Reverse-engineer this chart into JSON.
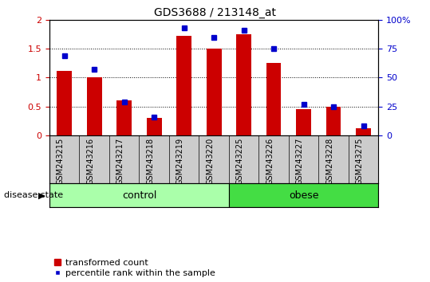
{
  "title": "GDS3688 / 213148_at",
  "categories": [
    "GSM243215",
    "GSM243216",
    "GSM243217",
    "GSM243218",
    "GSM243219",
    "GSM243220",
    "GSM243225",
    "GSM243226",
    "GSM243227",
    "GSM243228",
    "GSM243275"
  ],
  "transformed_count": [
    1.12,
    1.0,
    0.6,
    0.3,
    1.72,
    1.5,
    1.75,
    1.25,
    0.45,
    0.5,
    0.12
  ],
  "percentile_rank": [
    69,
    57,
    29,
    16,
    93,
    85,
    91,
    75,
    27,
    25,
    8
  ],
  "left_ylim": [
    0,
    2
  ],
  "right_ylim": [
    0,
    100
  ],
  "left_yticks": [
    0,
    0.5,
    1.0,
    1.5,
    2.0
  ],
  "right_yticks": [
    0,
    25,
    50,
    75,
    100
  ],
  "right_yticklabels": [
    "0",
    "25",
    "50",
    "75",
    "100%"
  ],
  "bar_color": "#cc0000",
  "dot_color": "#0000cc",
  "bar_width": 0.5,
  "control_count": 6,
  "obese_count": 5,
  "control_label": "control",
  "obese_label": "obese",
  "disease_state_label": "disease state",
  "legend_bar_label": "transformed count",
  "legend_dot_label": "percentile rank within the sample",
  "control_color": "#aaffaa",
  "obese_color": "#44dd44",
  "axis_bg_color": "#cccccc",
  "figsize": [
    5.39,
    3.54
  ],
  "dpi": 100
}
